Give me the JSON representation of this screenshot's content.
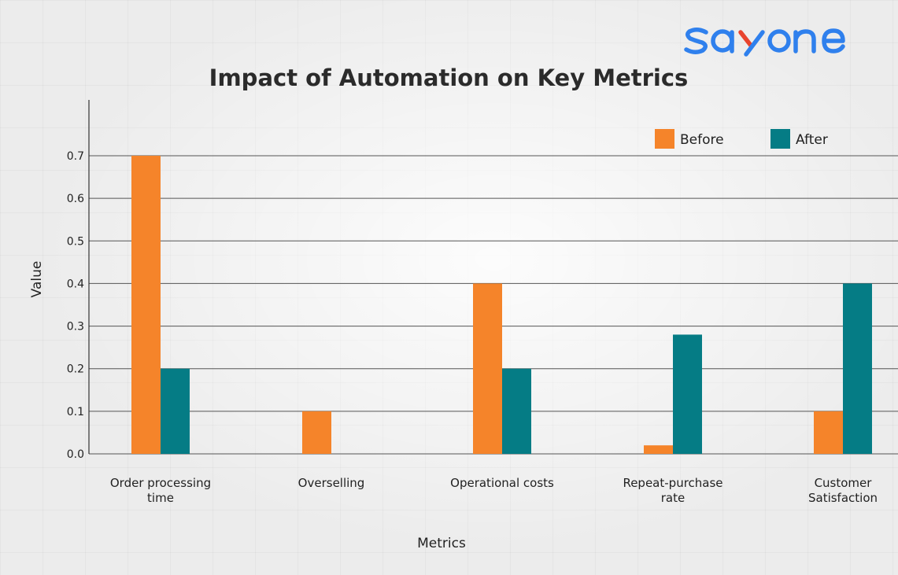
{
  "brand": {
    "logo_text": "sayone",
    "colors": {
      "primary": "#2f80ed",
      "accent": "#e8442e"
    }
  },
  "chart_data": {
    "type": "bar",
    "title": "Impact of Automation on Key Metrics",
    "xlabel": "Metrics",
    "ylabel": "Value",
    "categories": [
      [
        "Order processing",
        "time"
      ],
      [
        "Overselling"
      ],
      [
        "Operational costs"
      ],
      [
        "Repeat-purchase",
        "rate"
      ],
      [
        "Customer",
        "Satisfaction"
      ]
    ],
    "series": [
      {
        "name": "Before",
        "color": "#f5842a",
        "values": [
          0.7,
          0.1,
          0.4,
          0.02,
          0.1
        ]
      },
      {
        "name": "After",
        "color": "#057c85",
        "values": [
          0.2,
          0.0,
          0.2,
          0.28,
          0.4
        ]
      }
    ],
    "yticks": [
      "0.0",
      "0.1",
      "0.2",
      "0.3",
      "0.4",
      "0.5",
      "0.6",
      "0.7"
    ],
    "ylim": [
      0,
      0.8
    ],
    "grid": "horizontal",
    "legend_position": "top-right"
  }
}
